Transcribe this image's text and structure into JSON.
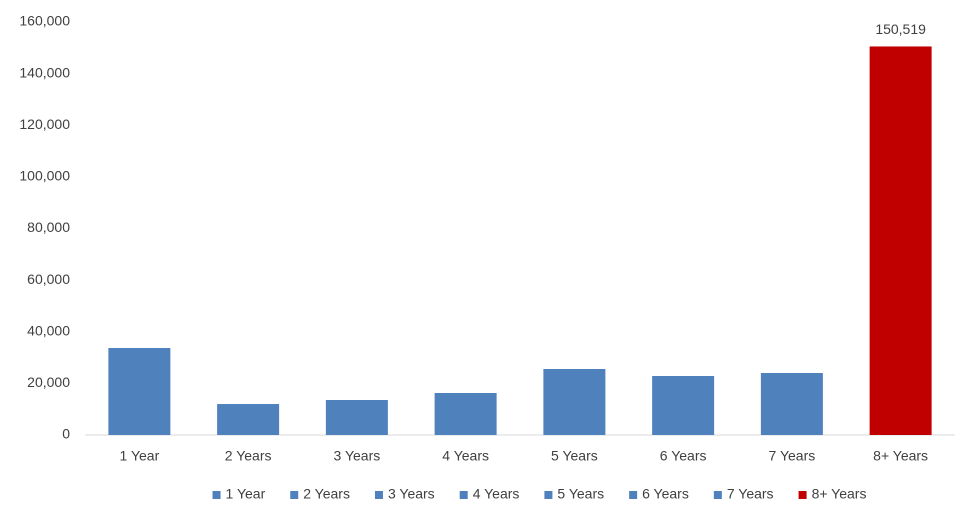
{
  "chart_data": {
    "type": "bar",
    "categories": [
      "1 Year",
      "2 Years",
      "3 Years",
      "4 Years",
      "5 Years",
      "6 Years",
      "7 Years",
      "8+ Years"
    ],
    "values": [
      33700,
      12000,
      13560,
      16270,
      25570,
      22860,
      24020,
      150519
    ],
    "value_labels": [
      null,
      null,
      null,
      null,
      null,
      null,
      null,
      "150,519"
    ],
    "colors": [
      "#4f81bd",
      "#4f81bd",
      "#4f81bd",
      "#4f81bd",
      "#4f81bd",
      "#4f81bd",
      "#4f81bd",
      "#c00000"
    ],
    "ylim": [
      0,
      160000
    ],
    "yticks": [
      0,
      {
        "value": 20000,
        "label": "20,000"
      },
      {
        "value": 40000,
        "label": "40,000"
      },
      {
        "value": 60000,
        "label": "60,000"
      },
      {
        "value": 80000,
        "label": "80,000"
      },
      {
        "value": 100000,
        "label": "100,000"
      },
      {
        "value": 120000,
        "label": "120,000"
      },
      {
        "value": 140000,
        "label": "140,000"
      },
      {
        "value": 160000,
        "label": "160,000"
      }
    ],
    "grid": false,
    "legend": "bottom"
  }
}
